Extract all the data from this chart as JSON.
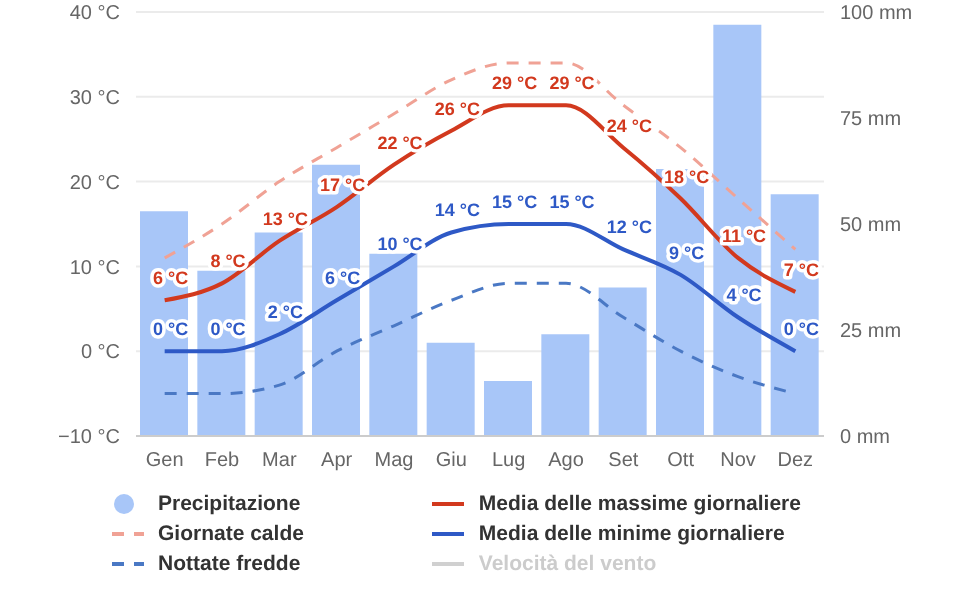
{
  "chart_data": {
    "type": "line",
    "categories": [
      "Gen",
      "Feb",
      "Mar",
      "Apr",
      "Mag",
      "Giu",
      "Lug",
      "Ago",
      "Set",
      "Ott",
      "Nov",
      "Dez"
    ],
    "series": [
      {
        "name": "Precipitazione",
        "type": "bar",
        "axis": "y2",
        "color": "#a8c6f8",
        "values": [
          53,
          39,
          48,
          64,
          43,
          22,
          13,
          24,
          35,
          63,
          97,
          57
        ]
      },
      {
        "name": "Giornate calde",
        "line_style": "dashed",
        "color": "#f0a295",
        "values": [
          11,
          15,
          20,
          24,
          28,
          32,
          34,
          34,
          29,
          24,
          18,
          12
        ]
      },
      {
        "name": "Nottate fredde",
        "line_style": "dashed",
        "color": "#4a78c4",
        "values": [
          -5,
          -5,
          -4,
          0,
          3,
          6,
          8,
          8,
          4,
          0,
          -3,
          -5
        ]
      },
      {
        "name": "Media delle massime giornaliere",
        "color": "#d2391e",
        "values": [
          6,
          8,
          13,
          17,
          22,
          26,
          29,
          29,
          24,
          18,
          11,
          7
        ],
        "value_labels": [
          "6 °C",
          "8 °C",
          "13 °C",
          "17 °C",
          "22 °C",
          "26 °C",
          "29 °C",
          "29 °C",
          "24 °C",
          "18 °C",
          "11 °C",
          "7 °C"
        ]
      },
      {
        "name": "Media delle minime giornaliere",
        "color": "#2e59c6",
        "values": [
          0,
          0,
          2,
          6,
          10,
          14,
          15,
          15,
          12,
          9,
          4,
          0
        ],
        "value_labels": [
          "0 °C",
          "0 °C",
          "2 °C",
          "6 °C",
          "10 °C",
          "14 °C",
          "15 °C",
          "15 °C",
          "12 °C",
          "9 °C",
          "4 °C",
          "0 °C"
        ]
      },
      {
        "name": "Velocità del vento",
        "color": "#d0d0d0",
        "values": [
          null,
          null,
          null,
          null,
          null,
          null,
          null,
          null,
          null,
          null,
          null,
          null
        ]
      }
    ],
    "ylim": [
      -10,
      40
    ],
    "yticks": [
      {
        "value": -10,
        "label": "−10 °C"
      },
      {
        "value": 0,
        "label": "0 °C"
      },
      {
        "value": 10,
        "label": "10 °C"
      },
      {
        "value": 20,
        "label": "20 °C"
      },
      {
        "value": 30,
        "label": "30 °C"
      },
      {
        "value": 40,
        "label": "40 °C"
      }
    ],
    "y2lim": [
      0,
      100
    ],
    "y2ticks": [
      {
        "value": 0,
        "label": "0 mm"
      },
      {
        "value": 25,
        "label": "25 mm"
      },
      {
        "value": 50,
        "label": "50 mm"
      },
      {
        "value": 75,
        "label": "75 mm"
      },
      {
        "value": 100,
        "label": "100 mm"
      }
    ],
    "grid": "y",
    "legend": "bottom",
    "marker": "none"
  }
}
